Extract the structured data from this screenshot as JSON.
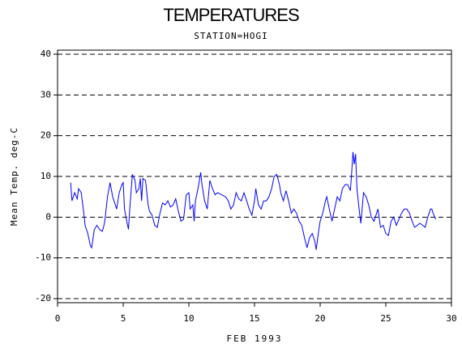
{
  "chart_data": {
    "type": "line",
    "title": "TEMPERATURES",
    "subtitle": "STATION=HOGI",
    "xlabel": "FEB 1993",
    "ylabel": "Mean Temp. deg-C",
    "xlim": [
      0,
      30
    ],
    "xticks": [
      0,
      5,
      10,
      15,
      20,
      25,
      30
    ],
    "ylim": [
      -20,
      40
    ],
    "yticks": [
      -20,
      -10,
      0,
      10,
      20,
      30,
      40
    ],
    "grid": true,
    "series": [
      {
        "name": "Mean Temp",
        "color": "#0000ff",
        "x": [
          1.0,
          1.1,
          1.3,
          1.5,
          1.6,
          1.8,
          2.0,
          2.1,
          2.3,
          2.5,
          2.6,
          2.8,
          3.0,
          3.2,
          3.4,
          3.5,
          3.6,
          3.8,
          4.0,
          4.2,
          4.4,
          4.5,
          4.7,
          4.9,
          5.0,
          5.1,
          5.3,
          5.4,
          5.5,
          5.7,
          5.9,
          6.0,
          6.2,
          6.3,
          6.4,
          6.5,
          6.7,
          6.9,
          7.0,
          7.2,
          7.4,
          7.6,
          7.8,
          8.0,
          8.2,
          8.4,
          8.6,
          8.8,
          9.0,
          9.2,
          9.4,
          9.6,
          9.8,
          10.0,
          10.1,
          10.3,
          10.4,
          10.5,
          10.7,
          10.9,
          11.0,
          11.2,
          11.4,
          11.6,
          11.8,
          12.0,
          12.2,
          12.5,
          12.8,
          13.0,
          13.2,
          13.4,
          13.6,
          13.8,
          14.0,
          14.2,
          14.4,
          14.6,
          14.8,
          15.0,
          15.1,
          15.3,
          15.5,
          15.7,
          15.9,
          16.1,
          16.3,
          16.5,
          16.7,
          16.9,
          17.0,
          17.2,
          17.4,
          17.6,
          17.8,
          18.0,
          18.2,
          18.4,
          18.6,
          18.8,
          19.0,
          19.2,
          19.4,
          19.6,
          19.7,
          19.9,
          20.0,
          20.2,
          20.4,
          20.5,
          20.7,
          20.9,
          21.1,
          21.3,
          21.5,
          21.7,
          21.9,
          22.1,
          22.3,
          22.4,
          22.5,
          22.6,
          22.7,
          22.8,
          23.0,
          23.1,
          23.3,
          23.5,
          23.7,
          23.9,
          24.1,
          24.3,
          24.4,
          24.6,
          24.8,
          25.0,
          25.2,
          25.4,
          25.6,
          25.8,
          26.0,
          26.2,
          26.4,
          26.6,
          26.8,
          27.0,
          27.2,
          27.4,
          27.6,
          27.8,
          28.0,
          28.2,
          28.4,
          28.5,
          28.6,
          28.8
        ],
        "values": [
          8.5,
          4,
          6,
          4.5,
          7,
          6,
          1,
          -2,
          -4,
          -7,
          -7.5,
          -3,
          -2,
          -3,
          -3.5,
          -2.5,
          -1,
          5,
          8.5,
          5,
          3,
          2,
          6,
          8,
          8.5,
          2,
          -1.5,
          -3,
          2,
          10.5,
          9,
          6,
          7,
          9.5,
          4,
          9.5,
          9,
          3,
          1.5,
          0.5,
          -2,
          -2.5,
          1,
          3.5,
          3,
          4,
          2.5,
          3,
          4.5,
          1.5,
          -1,
          -0.5,
          5.5,
          6,
          2,
          3,
          -1,
          4,
          7,
          11,
          8,
          4,
          2,
          9,
          7,
          5.5,
          6,
          5.5,
          5,
          4,
          2,
          3,
          6,
          4.5,
          4,
          6,
          4,
          2,
          0.5,
          4,
          7,
          3,
          2,
          4,
          4,
          5,
          7,
          10,
          10.5,
          8,
          6,
          4,
          6.5,
          4,
          1,
          2,
          1,
          -1,
          -2,
          -5,
          -7.5,
          -5,
          -4,
          -6,
          -8,
          -3,
          -1,
          1,
          4,
          5,
          2,
          -1,
          2,
          5,
          4,
          7,
          8,
          8,
          6.5,
          11,
          16,
          13,
          15.5,
          7,
          1,
          -1.5,
          6,
          5,
          3,
          0,
          -1,
          1,
          2,
          -2.5,
          -2,
          -4,
          -4.5,
          -1,
          0,
          -2,
          -0.5,
          1,
          2,
          2,
          1,
          -1,
          -2.5,
          -2,
          -1.5,
          -2,
          -2.5,
          0,
          2,
          2,
          1,
          -0.5
        ]
      }
    ]
  }
}
